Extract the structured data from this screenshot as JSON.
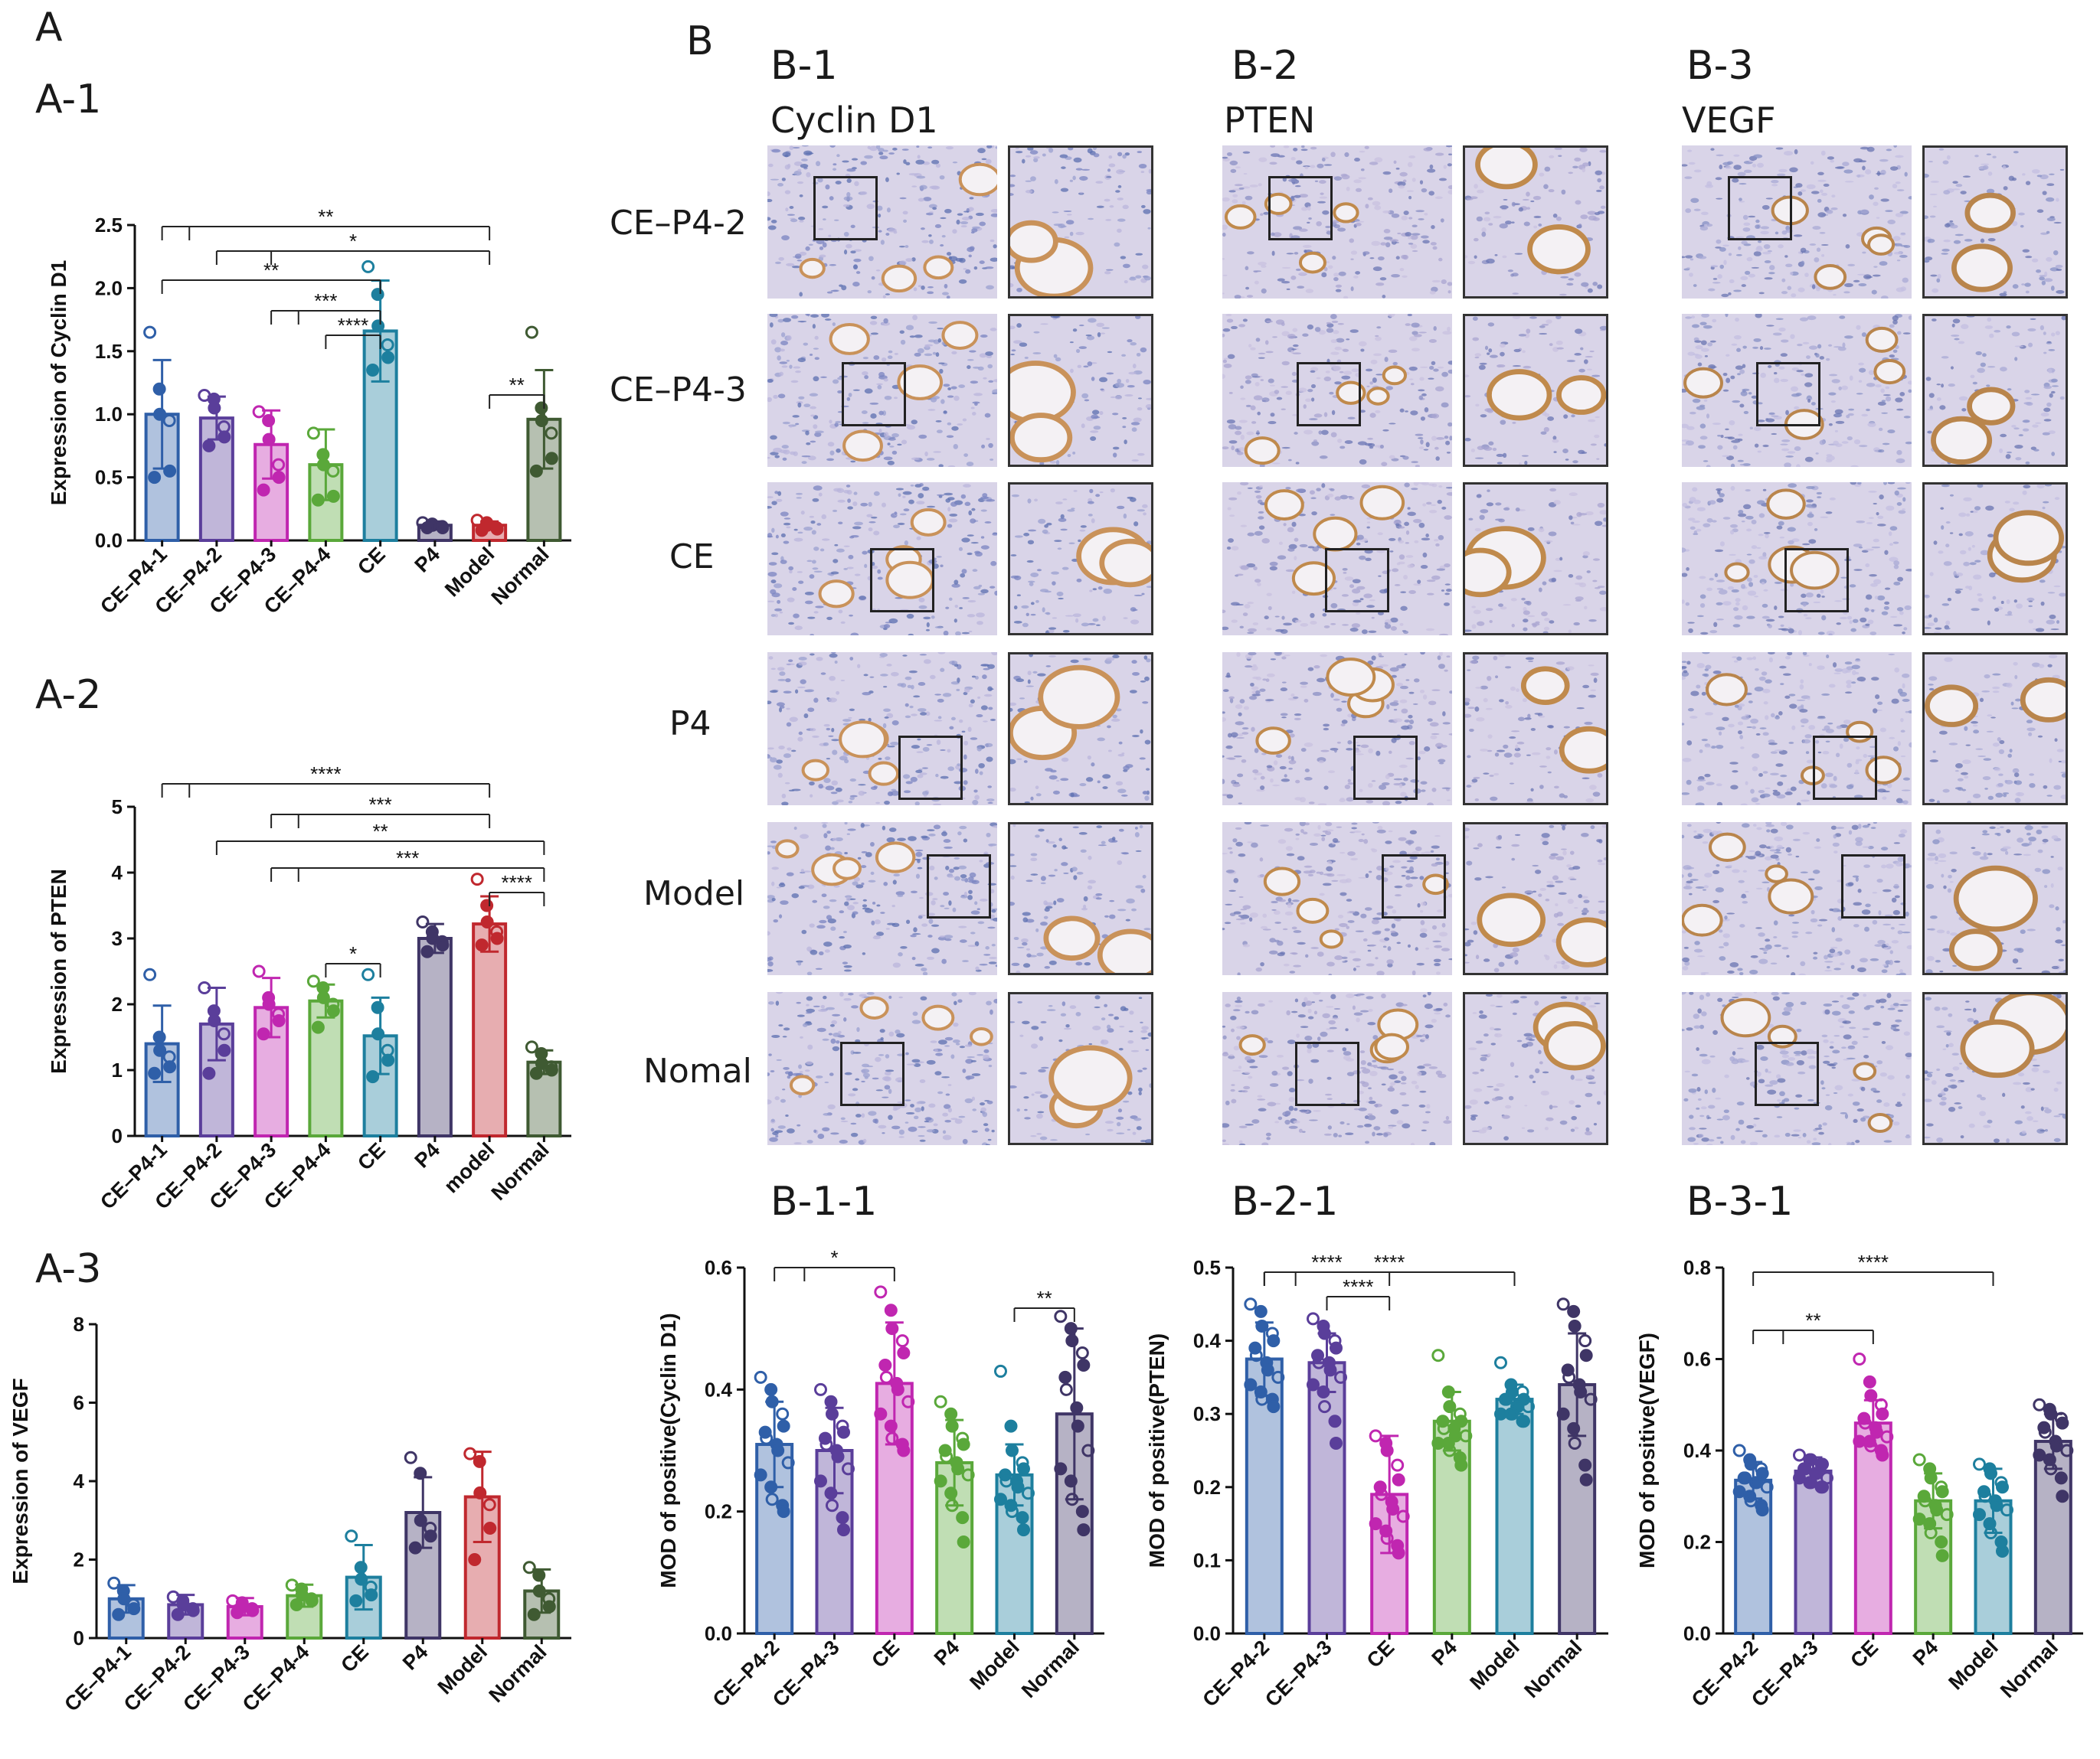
{
  "panel_labels": {
    "A": "A",
    "A1": "A-1",
    "A2": "A-2",
    "A3": "A-3",
    "B": "B",
    "B1": "B-1",
    "B2": "B-2",
    "B3": "B-3",
    "B11": "B-1-1",
    "B21": "B-2-1",
    "B31": "B-3-1"
  },
  "columns": {
    "B1": "Cyclin D1",
    "B2": "PTEN",
    "B3": "VEGF"
  },
  "rows": [
    "CE–P4-2",
    "CE–P4-3",
    "CE",
    "P4",
    "Model",
    "Nomal"
  ],
  "colors": {
    "ce_p4_1": "#2f5fa8",
    "ce_p4_2": "#5a3e9a",
    "ce_p4_3": "#c026b0",
    "ce_p4_4": "#5aa83a",
    "ce": "#1d7f9e",
    "p4": "#3f3566",
    "model": "#c0282e",
    "normal": "#3f5a32"
  },
  "chart_data": [
    {
      "id": "A-1",
      "type": "bar",
      "ylabel": "Expression of Cyclin D1",
      "ylim": [
        0,
        2.5
      ],
      "yticks": [
        "0.0",
        "0.5",
        "1.0",
        "1.5",
        "2.0",
        "2.5"
      ],
      "categories": [
        "CE–P4-1",
        "CE–P4-2",
        "CE–P4-3",
        "CE–P4-4",
        "CE",
        "P4",
        "Model",
        "Normal"
      ],
      "values": [
        1.0,
        0.97,
        0.76,
        0.6,
        1.66,
        0.12,
        0.12,
        0.96
      ],
      "errors": [
        0.43,
        0.17,
        0.27,
        0.28,
        0.4,
        0.03,
        0.03,
        0.39
      ],
      "points": [
        [
          1.65,
          1.2,
          1.0,
          0.95,
          0.55,
          0.5
        ],
        [
          1.15,
          1.12,
          1.05,
          0.9,
          0.82,
          0.75
        ],
        [
          1.02,
          0.95,
          0.8,
          0.6,
          0.5,
          0.4
        ],
        [
          0.85,
          0.68,
          0.6,
          0.55,
          0.35,
          0.32
        ],
        [
          2.17,
          1.95,
          1.7,
          1.55,
          1.45,
          1.35
        ],
        [
          0.14,
          0.13,
          0.12,
          0.11,
          0.1,
          0.1
        ],
        [
          0.16,
          0.14,
          0.12,
          0.1,
          0.09,
          0.08
        ],
        [
          1.65,
          1.05,
          0.95,
          0.85,
          0.65,
          0.55
        ]
      ],
      "significance": [
        {
          "text": "**"
        },
        {
          "text": "*"
        },
        {
          "text": "**"
        },
        {
          "text": "***"
        },
        {
          "text": "****"
        },
        {
          "text": "**"
        }
      ]
    },
    {
      "id": "A-2",
      "type": "bar",
      "ylabel": "Expression of PTEN",
      "ylim": [
        0,
        5
      ],
      "yticks": [
        "0",
        "1",
        "2",
        "3",
        "4",
        "5"
      ],
      "categories": [
        "CE–P4-1",
        "CE–P4-2",
        "CE–P4-3",
        "CE–P4-4",
        "CE",
        "P4",
        "model",
        "Normal"
      ],
      "values": [
        1.4,
        1.7,
        1.95,
        2.05,
        1.52,
        3.0,
        3.22,
        1.12
      ],
      "errors": [
        0.58,
        0.55,
        0.45,
        0.25,
        0.58,
        0.22,
        0.42,
        0.18
      ],
      "points": [
        [
          2.45,
          1.5,
          1.3,
          1.2,
          1.05,
          0.95
        ],
        [
          2.25,
          1.9,
          1.75,
          1.55,
          1.3,
          0.95
        ],
        [
          2.5,
          2.1,
          2.0,
          1.85,
          1.75,
          1.55
        ],
        [
          2.35,
          2.25,
          2.1,
          2.0,
          1.9,
          1.65
        ],
        [
          2.45,
          1.95,
          1.55,
          1.3,
          1.15,
          0.9
        ],
        [
          3.25,
          3.1,
          3.0,
          2.95,
          2.9,
          2.8
        ],
        [
          3.9,
          3.5,
          3.25,
          3.1,
          3.0,
          2.9
        ],
        [
          1.35,
          1.25,
          1.1,
          1.05,
          1.0,
          0.95
        ]
      ],
      "significance": [
        {
          "text": "****"
        },
        {
          "text": "***"
        },
        {
          "text": "**"
        },
        {
          "text": "***"
        },
        {
          "text": "****"
        },
        {
          "text": "*"
        }
      ]
    },
    {
      "id": "A-3",
      "type": "bar",
      "ylabel": "Expression of VEGF",
      "ylim": [
        0,
        8
      ],
      "yticks": [
        "0",
        "2",
        "4",
        "6",
        "8"
      ],
      "categories": [
        "CE–P4-1",
        "CE–P4-2",
        "CE–P4-3",
        "CE–P4-4",
        "CE",
        "P4",
        "Model",
        "Normal"
      ],
      "values": [
        1.0,
        0.85,
        0.8,
        1.08,
        1.55,
        3.2,
        3.6,
        1.2
      ],
      "errors": [
        0.35,
        0.25,
        0.22,
        0.28,
        0.82,
        0.9,
        1.15,
        0.55
      ],
      "points": [
        [
          1.4,
          1.2,
          1.0,
          0.85,
          0.75,
          0.6
        ],
        [
          1.05,
          0.95,
          0.85,
          0.75,
          0.7,
          0.6
        ],
        [
          0.95,
          0.9,
          0.8,
          0.75,
          0.7,
          0.65
        ],
        [
          1.35,
          1.25,
          1.1,
          1.0,
          0.95,
          0.85
        ],
        [
          2.6,
          1.8,
          1.5,
          1.3,
          1.1,
          0.95
        ],
        [
          4.6,
          4.2,
          3.0,
          2.8,
          2.6,
          2.3
        ],
        [
          4.7,
          4.5,
          3.7,
          3.4,
          2.8,
          2.0
        ],
        [
          1.8,
          1.6,
          1.2,
          1.0,
          0.8,
          0.6
        ]
      ],
      "significance": []
    },
    {
      "id": "B-1-1",
      "type": "bar",
      "ylabel": "MOD of positive(Cyclin D1)",
      "ylim": [
        0,
        0.6
      ],
      "yticks": [
        "0.0",
        "0.2",
        "0.4",
        "0.6"
      ],
      "categories": [
        "CE–P4-2",
        "CE–P4-3",
        "CE",
        "P4",
        "Model",
        "Normal"
      ],
      "values": [
        0.31,
        0.3,
        0.41,
        0.28,
        0.26,
        0.36
      ],
      "errors": [
        0.07,
        0.07,
        0.1,
        0.07,
        0.05,
        0.14
      ],
      "points": [
        [
          0.42,
          0.4,
          0.38,
          0.36,
          0.34,
          0.33,
          0.32,
          0.31,
          0.3,
          0.28,
          0.26,
          0.24,
          0.22,
          0.21,
          0.2
        ],
        [
          0.4,
          0.38,
          0.36,
          0.34,
          0.33,
          0.32,
          0.31,
          0.3,
          0.29,
          0.27,
          0.25,
          0.23,
          0.21,
          0.19,
          0.17
        ],
        [
          0.56,
          0.53,
          0.5,
          0.48,
          0.46,
          0.44,
          0.42,
          0.41,
          0.4,
          0.38,
          0.36,
          0.34,
          0.32,
          0.31,
          0.3
        ],
        [
          0.38,
          0.36,
          0.34,
          0.32,
          0.31,
          0.3,
          0.29,
          0.28,
          0.27,
          0.26,
          0.25,
          0.23,
          0.21,
          0.19,
          0.15
        ],
        [
          0.43,
          0.34,
          0.3,
          0.28,
          0.27,
          0.26,
          0.25,
          0.25,
          0.24,
          0.23,
          0.22,
          0.21,
          0.2,
          0.19,
          0.17
        ],
        [
          0.52,
          0.5,
          0.48,
          0.46,
          0.44,
          0.42,
          0.4,
          0.37,
          0.34,
          0.3,
          0.27,
          0.25,
          0.22,
          0.2,
          0.17
        ]
      ],
      "significance": [
        {
          "text": "*"
        },
        {
          "text": "**"
        }
      ]
    },
    {
      "id": "B-2-1",
      "type": "bar",
      "ylabel": "MOD of positive(PTEN)",
      "ylim": [
        0,
        0.5
      ],
      "yticks": [
        "0.0",
        "0.1",
        "0.2",
        "0.3",
        "0.4",
        "0.5"
      ],
      "categories": [
        "CE–P4-2",
        "CE–P4-3",
        "CE",
        "P4",
        "Model",
        "Normal"
      ],
      "values": [
        0.375,
        0.37,
        0.19,
        0.29,
        0.32,
        0.34
      ],
      "errors": [
        0.05,
        0.04,
        0.08,
        0.04,
        0.02,
        0.07
      ],
      "points": [
        [
          0.45,
          0.44,
          0.42,
          0.41,
          0.4,
          0.39,
          0.38,
          0.37,
          0.36,
          0.35,
          0.34,
          0.33,
          0.32,
          0.32,
          0.31
        ],
        [
          0.43,
          0.42,
          0.41,
          0.4,
          0.39,
          0.38,
          0.37,
          0.37,
          0.36,
          0.35,
          0.34,
          0.33,
          0.31,
          0.29,
          0.26
        ],
        [
          0.27,
          0.26,
          0.25,
          0.23,
          0.21,
          0.2,
          0.19,
          0.18,
          0.17,
          0.16,
          0.15,
          0.14,
          0.13,
          0.12,
          0.11
        ],
        [
          0.38,
          0.33,
          0.31,
          0.3,
          0.29,
          0.29,
          0.28,
          0.28,
          0.27,
          0.27,
          0.26,
          0.26,
          0.25,
          0.24,
          0.23
        ],
        [
          0.37,
          0.34,
          0.33,
          0.33,
          0.32,
          0.32,
          0.32,
          0.31,
          0.31,
          0.31,
          0.3,
          0.3,
          0.3,
          0.29,
          0.29
        ],
        [
          0.45,
          0.44,
          0.42,
          0.4,
          0.38,
          0.36,
          0.35,
          0.34,
          0.33,
          0.32,
          0.3,
          0.28,
          0.26,
          0.23,
          0.21
        ]
      ],
      "significance": [
        {
          "text": "****"
        },
        {
          "text": "****"
        },
        {
          "text": "****"
        }
      ]
    },
    {
      "id": "B-3-1",
      "type": "bar",
      "ylabel": "MOD of positive(VEGF)",
      "ylim": [
        0,
        0.8
      ],
      "yticks": [
        "0.0",
        "0.2",
        "0.4",
        "0.6",
        "0.8"
      ],
      "categories": [
        "CE–P4-2",
        "CE–P4-3",
        "CE",
        "P4",
        "Model",
        "Normal"
      ],
      "values": [
        0.335,
        0.355,
        0.46,
        0.29,
        0.29,
        0.42
      ],
      "errors": [
        0.04,
        0.03,
        0.05,
        0.06,
        0.07,
        0.06
      ],
      "points": [
        [
          0.4,
          0.38,
          0.37,
          0.36,
          0.35,
          0.34,
          0.34,
          0.33,
          0.33,
          0.32,
          0.31,
          0.3,
          0.29,
          0.28,
          0.27
        ],
        [
          0.39,
          0.38,
          0.38,
          0.37,
          0.37,
          0.36,
          0.36,
          0.35,
          0.35,
          0.34,
          0.34,
          0.33,
          0.33,
          0.32,
          0.32
        ],
        [
          0.6,
          0.55,
          0.52,
          0.5,
          0.48,
          0.47,
          0.46,
          0.45,
          0.44,
          0.43,
          0.42,
          0.42,
          0.41,
          0.4,
          0.39
        ],
        [
          0.38,
          0.36,
          0.34,
          0.32,
          0.31,
          0.3,
          0.29,
          0.28,
          0.27,
          0.26,
          0.25,
          0.24,
          0.22,
          0.2,
          0.17
        ],
        [
          0.37,
          0.36,
          0.35,
          0.33,
          0.32,
          0.31,
          0.3,
          0.29,
          0.28,
          0.27,
          0.26,
          0.24,
          0.22,
          0.2,
          0.18
        ],
        [
          0.5,
          0.49,
          0.48,
          0.47,
          0.46,
          0.45,
          0.44,
          0.42,
          0.41,
          0.4,
          0.39,
          0.38,
          0.36,
          0.34,
          0.3
        ]
      ],
      "significance": [
        {
          "text": "****"
        },
        {
          "text": "**"
        }
      ]
    }
  ]
}
